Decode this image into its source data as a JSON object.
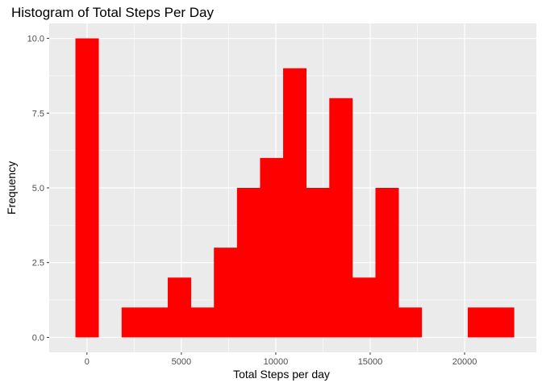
{
  "chart_data": {
    "type": "bar",
    "title": "Histogram of Total Steps Per Day",
    "xlabel": "Total Steps per day",
    "ylabel": "Frequency",
    "bin_width": 1222,
    "bins": [
      {
        "x": 0,
        "count": 10
      },
      {
        "x": 2445,
        "count": 1
      },
      {
        "x": 3667,
        "count": 1
      },
      {
        "x": 4889,
        "count": 2
      },
      {
        "x": 6111,
        "count": 1
      },
      {
        "x": 7334,
        "count": 3
      },
      {
        "x": 8556,
        "count": 5
      },
      {
        "x": 9778,
        "count": 6
      },
      {
        "x": 11000,
        "count": 9
      },
      {
        "x": 12223,
        "count": 5
      },
      {
        "x": 13445,
        "count": 8
      },
      {
        "x": 14667,
        "count": 2
      },
      {
        "x": 15889,
        "count": 5
      },
      {
        "x": 17112,
        "count": 1
      },
      {
        "x": 20779,
        "count": 1
      },
      {
        "x": 22001,
        "count": 1
      }
    ],
    "xlim": [
      -2000,
      23800
    ],
    "ylim": [
      -0.5,
      10.5
    ],
    "x_ticks": [
      0,
      5000,
      10000,
      15000,
      20000
    ],
    "x_tick_labels": [
      "0",
      "5000",
      "10000",
      "15000",
      "20000"
    ],
    "y_ticks": [
      0,
      2.5,
      5,
      7.5,
      10
    ],
    "y_tick_labels": [
      "0.0",
      "2.5",
      "5.0",
      "7.5",
      "10.0"
    ],
    "grid": true,
    "bar_color": "#ff0000",
    "panel_color": "#ebebeb",
    "grid_color": "#ffffff"
  }
}
